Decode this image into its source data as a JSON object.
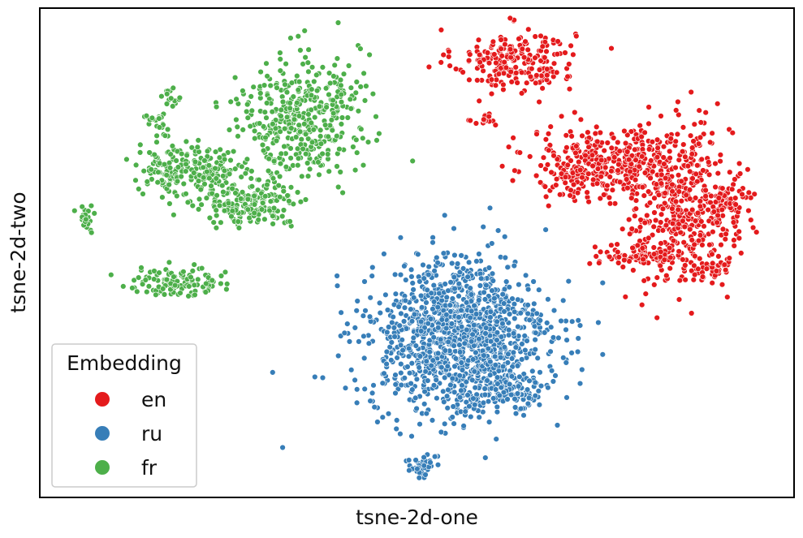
{
  "chart_data": {
    "type": "scatter",
    "title": "",
    "xlabel": "tsne-2d-one",
    "ylabel": "tsne-2d-two",
    "xticks": [],
    "yticks": [],
    "xlim": [
      0,
      100
    ],
    "ylim": [
      0,
      100
    ],
    "grid": false,
    "legend": {
      "title": "Embedding",
      "placement": "lower-left",
      "entries": [
        "en",
        "ru",
        "fr"
      ]
    },
    "colors": {
      "en": "#e41a1c",
      "ru": "#377eb8",
      "fr": "#4daf4a"
    },
    "series": [
      {
        "name": "en",
        "color": "#e41a1c",
        "clusters": [
          {
            "cx": 62.9,
            "cy": 89.3,
            "sx": 4.0,
            "sy": 3.2,
            "n": 230
          },
          {
            "cx": 59.1,
            "cy": 77.0,
            "sx": 0.9,
            "sy": 0.8,
            "n": 14
          },
          {
            "cx": 73.8,
            "cy": 67.8,
            "sx": 4.3,
            "sy": 3.6,
            "n": 320
          },
          {
            "cx": 79.4,
            "cy": 71.6,
            "sx": 1.5,
            "sy": 2.5,
            "n": 50
          },
          {
            "cx": 85.1,
            "cy": 59.7,
            "sx": 3.4,
            "sy": 8.2,
            "n": 460
          },
          {
            "cx": 91.1,
            "cy": 60.2,
            "sx": 1.6,
            "sy": 2.8,
            "n": 70
          },
          {
            "cx": 79.6,
            "cy": 49.5,
            "sx": 2.7,
            "sy": 1.0,
            "n": 75
          },
          {
            "cx": 89.3,
            "cy": 46.9,
            "sx": 1.4,
            "sy": 1.2,
            "n": 40
          }
        ]
      },
      {
        "name": "ru",
        "color": "#377eb8",
        "clusters": [
          {
            "cx": 55.7,
            "cy": 32.6,
            "sx": 6.0,
            "sy": 8.0,
            "n": 1250
          },
          {
            "cx": 62.4,
            "cy": 21.8,
            "sx": 2.5,
            "sy": 2.0,
            "n": 90
          },
          {
            "cx": 50.5,
            "cy": 6.5,
            "sx": 1.0,
            "sy": 1.1,
            "n": 35
          }
        ]
      },
      {
        "name": "fr",
        "color": "#4daf4a",
        "clusters": [
          {
            "cx": 34.5,
            "cy": 77.5,
            "sx": 4.0,
            "sy": 6.5,
            "n": 420
          },
          {
            "cx": 20.0,
            "cy": 67.0,
            "sx": 3.4,
            "sy": 2.5,
            "n": 210
          },
          {
            "cx": 28.0,
            "cy": 59.8,
            "sx": 3.5,
            "sy": 2.2,
            "n": 180
          },
          {
            "cx": 15.8,
            "cy": 76.8,
            "sx": 0.9,
            "sy": 1.2,
            "n": 25
          },
          {
            "cx": 17.5,
            "cy": 81.6,
            "sx": 0.8,
            "sy": 0.8,
            "n": 14
          },
          {
            "cx": 6.1,
            "cy": 56.8,
            "sx": 0.6,
            "sy": 1.3,
            "n": 25
          },
          {
            "cx": 18.0,
            "cy": 44.2,
            "sx": 3.0,
            "sy": 1.5,
            "n": 120
          }
        ]
      }
    ]
  }
}
